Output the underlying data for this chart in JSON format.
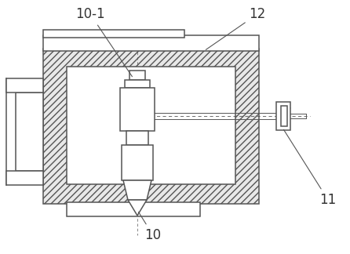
{
  "background_color": "#ffffff",
  "line_color": "#555555",
  "hatch_fc": "#e8e8e8",
  "label_color": "#333333",
  "figsize": [
    4.46,
    3.24
  ],
  "dpi": 100,
  "hatch": "////",
  "lw_main": 1.1,
  "lw_thin": 0.7
}
